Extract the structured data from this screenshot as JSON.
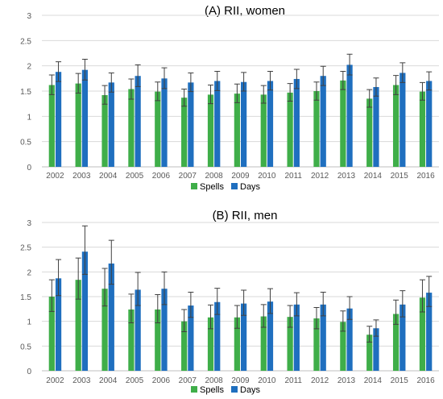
{
  "colors": {
    "spells": "#3fae49",
    "days": "#1f6fbf",
    "grid": "#d9d9d9",
    "axis": "#bfbfbf",
    "error_bar": "#404040"
  },
  "chart_data": [
    {
      "type": "bar",
      "title": "(A) RII, women",
      "categories": [
        "2002",
        "2003",
        "2004",
        "2005",
        "2006",
        "2007",
        "2008",
        "2009",
        "2010",
        "2011",
        "2012",
        "2013",
        "2014",
        "2015",
        "2016"
      ],
      "ylim": [
        0,
        3
      ],
      "yticks": [
        "0",
        "0.5",
        "1",
        "1.5",
        "2",
        "2.5",
        "3"
      ],
      "grid": true,
      "legend": "bottom",
      "error_bars": true,
      "series": [
        {
          "name": "Spells",
          "values": [
            1.62,
            1.65,
            1.42,
            1.54,
            1.49,
            1.37,
            1.43,
            1.45,
            1.43,
            1.47,
            1.5,
            1.71,
            1.35,
            1.62,
            1.49
          ],
          "lower": [
            1.43,
            1.46,
            1.24,
            1.34,
            1.31,
            1.2,
            1.25,
            1.27,
            1.26,
            1.3,
            1.32,
            1.53,
            1.18,
            1.43,
            1.32
          ],
          "upper": [
            1.82,
            1.85,
            1.61,
            1.74,
            1.68,
            1.54,
            1.62,
            1.64,
            1.61,
            1.65,
            1.68,
            1.89,
            1.53,
            1.81,
            1.67
          ]
        },
        {
          "name": "Days",
          "values": [
            1.88,
            1.92,
            1.67,
            1.8,
            1.75,
            1.67,
            1.7,
            1.68,
            1.7,
            1.74,
            1.8,
            2.02,
            1.58,
            1.86,
            1.7
          ],
          "lower": [
            1.69,
            1.72,
            1.48,
            1.59,
            1.55,
            1.49,
            1.51,
            1.5,
            1.52,
            1.55,
            1.61,
            1.82,
            1.4,
            1.67,
            1.52
          ],
          "upper": [
            2.08,
            2.13,
            1.86,
            2.02,
            1.96,
            1.86,
            1.89,
            1.87,
            1.89,
            1.93,
            1.99,
            2.23,
            1.76,
            2.06,
            1.88
          ]
        }
      ]
    },
    {
      "type": "bar",
      "title": "(B) RII, men",
      "categories": [
        "2002",
        "2003",
        "2004",
        "2005",
        "2006",
        "2007",
        "2008",
        "2009",
        "2010",
        "2011",
        "2012",
        "2013",
        "2014",
        "2015",
        "2016"
      ],
      "ylim": [
        0,
        3
      ],
      "yticks": [
        "0",
        "0.5",
        "1",
        "1.5",
        "2",
        "2.5",
        "3"
      ],
      "grid": true,
      "legend": "bottom",
      "error_bars": true,
      "series": [
        {
          "name": "Spells",
          "values": [
            1.5,
            1.84,
            1.66,
            1.24,
            1.24,
            1.0,
            1.08,
            1.08,
            1.1,
            1.09,
            1.06,
            0.99,
            0.73,
            1.15,
            1.48
          ],
          "lower": [
            1.2,
            1.45,
            1.31,
            0.97,
            0.97,
            0.79,
            0.85,
            0.86,
            0.88,
            0.88,
            0.85,
            0.8,
            0.58,
            0.94,
            1.19
          ],
          "upper": [
            1.84,
            2.28,
            2.07,
            1.55,
            1.54,
            1.24,
            1.33,
            1.32,
            1.34,
            1.32,
            1.28,
            1.21,
            0.9,
            1.43,
            1.84
          ]
        },
        {
          "name": "Days",
          "values": [
            1.87,
            2.41,
            2.17,
            1.64,
            1.66,
            1.32,
            1.39,
            1.36,
            1.4,
            1.34,
            1.34,
            1.26,
            0.86,
            1.34,
            1.58
          ],
          "lower": [
            1.52,
            1.95,
            1.75,
            1.32,
            1.34,
            1.08,
            1.14,
            1.12,
            1.16,
            1.11,
            1.11,
            1.04,
            0.7,
            1.09,
            1.3
          ],
          "upper": [
            2.25,
            2.93,
            2.64,
            1.99,
            2.0,
            1.59,
            1.67,
            1.63,
            1.66,
            1.58,
            1.59,
            1.5,
            1.03,
            1.62,
            1.91
          ]
        }
      ]
    }
  ]
}
